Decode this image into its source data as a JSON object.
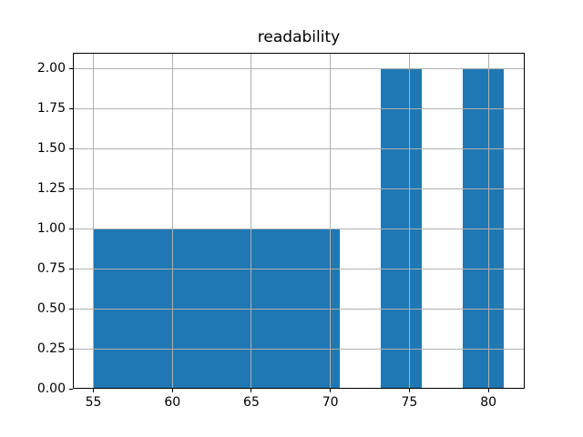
{
  "chart_data": {
    "type": "bar",
    "title": "readability",
    "xlabel": "",
    "ylabel": "",
    "grid": true,
    "legend": null,
    "bar_color": "#1f77b4",
    "grid_color": "#b0b0b0",
    "spine_color": "#000000",
    "background_color": "#ffffff",
    "xlim": [
      53.7,
      82.3
    ],
    "ylim": [
      0,
      2.1
    ],
    "xticks": [
      55,
      60,
      65,
      70,
      75,
      80
    ],
    "xtick_labels": [
      "55",
      "60",
      "65",
      "70",
      "75",
      "80"
    ],
    "ytick_values": [
      0,
      0.25,
      0.5,
      0.75,
      1.0,
      1.25,
      1.5,
      1.75,
      2.0
    ],
    "ytick_labels": [
      "0.00",
      "0.25",
      "0.50",
      "0.75",
      "1.00",
      "1.25",
      "1.50",
      "1.75",
      "2.00"
    ],
    "bin_edges": [
      55.0,
      57.6,
      60.2,
      62.8,
      65.4,
      68.0,
      70.6,
      73.2,
      75.8,
      78.4,
      81.0
    ],
    "counts": [
      1,
      1,
      1,
      1,
      1,
      1,
      0,
      2,
      0,
      2
    ]
  }
}
